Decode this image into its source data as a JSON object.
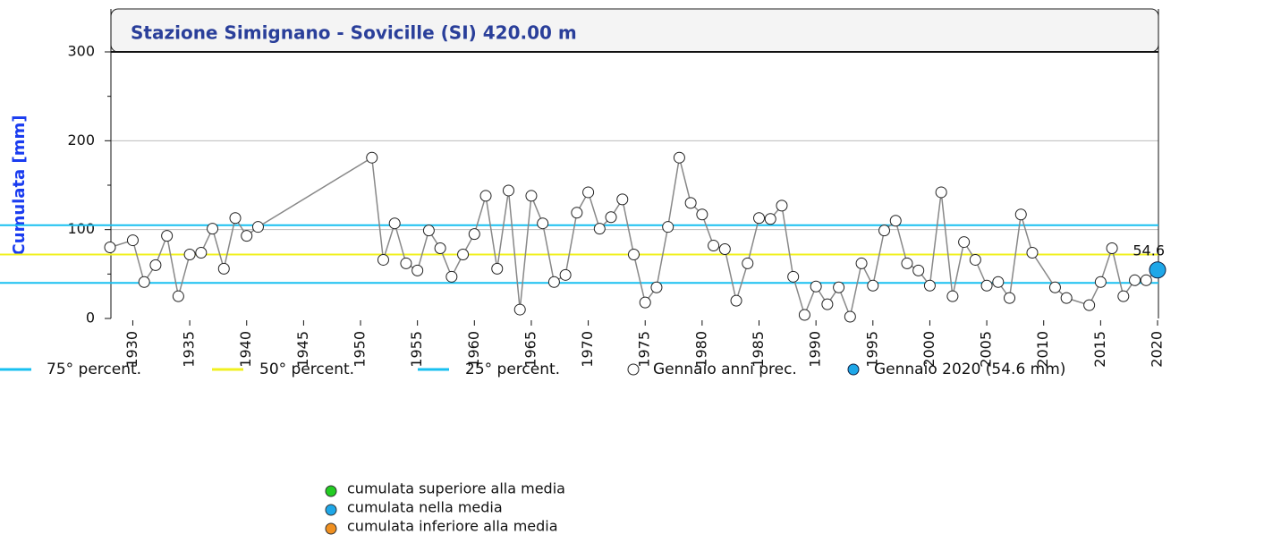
{
  "chart_data": {
    "type": "line",
    "title": "Stazione Simignano - Sovicille (SI) 420.00 m",
    "y_label": "Cumulata [mm]",
    "xlim": [
      1928,
      2020
    ],
    "xticks": [
      1930,
      1935,
      1940,
      1945,
      1950,
      1955,
      1960,
      1965,
      1970,
      1975,
      1980,
      1985,
      1990,
      1995,
      2000,
      2005,
      2010,
      2015,
      2020
    ],
    "ylim": [
      0,
      300
    ],
    "yticks": [
      0,
      100,
      200,
      300
    ],
    "grid": true,
    "reference_lines": [
      {
        "name": "75° percent.",
        "value": 105,
        "color": "#18c0f0"
      },
      {
        "name": "50° percent.",
        "value": 72,
        "color": "#f0f020"
      },
      {
        "name": "25° percent.",
        "value": 40,
        "color": "#18c0f0"
      }
    ],
    "series": [
      {
        "name": "Gennaio anni prec.",
        "color": "#888888",
        "x": [
          1928,
          1930,
          1931,
          1932,
          1933,
          1934,
          1935,
          1936,
          1937,
          1938,
          1939,
          1940,
          1941,
          1951,
          1952,
          1953,
          1954,
          1955,
          1956,
          1957,
          1958,
          1959,
          1960,
          1961,
          1962,
          1963,
          1964,
          1965,
          1966,
          1967,
          1968,
          1969,
          1970,
          1971,
          1972,
          1973,
          1974,
          1975,
          1976,
          1977,
          1978,
          1979,
          1980,
          1981,
          1982,
          1983,
          1984,
          1985,
          1986,
          1987,
          1988,
          1989,
          1990,
          1991,
          1992,
          1993,
          1994,
          1995,
          1996,
          1997,
          1998,
          1999,
          2000,
          2001,
          2002,
          2003,
          2004,
          2005,
          2006,
          2007,
          2008,
          2009,
          2011,
          2012,
          2014,
          2015,
          2016,
          2017,
          2018,
          2019
        ],
        "values": [
          80,
          88,
          41,
          60,
          93,
          25,
          72,
          74,
          101,
          56,
          113,
          93,
          103,
          181,
          66,
          107,
          62,
          54,
          99,
          79,
          47,
          72,
          95,
          138,
          56,
          144,
          10,
          138,
          107,
          41,
          49,
          119,
          142,
          101,
          114,
          134,
          72,
          18,
          35,
          103,
          181,
          130,
          117,
          82,
          78,
          20,
          62,
          113,
          112,
          127,
          47,
          4,
          36,
          16,
          35,
          2,
          62,
          37,
          99,
          110,
          62,
          54,
          37,
          142,
          25,
          86,
          66,
          37,
          41,
          23,
          117,
          74,
          35,
          23,
          15,
          41,
          79,
          25,
          43,
          43
        ]
      }
    ],
    "current": {
      "name": "Gennaio 2020 (54.6 mm)",
      "x": 2020,
      "value": 54.6,
      "color": "#1ea7e8"
    },
    "color_legend": [
      {
        "label": "cumulata superiore alla media",
        "color": "#22cc22"
      },
      {
        "label": "cumulata nella media",
        "color": "#1ea7e8"
      },
      {
        "label": "cumulata inferiore alla media",
        "color": "#f09020"
      }
    ]
  }
}
